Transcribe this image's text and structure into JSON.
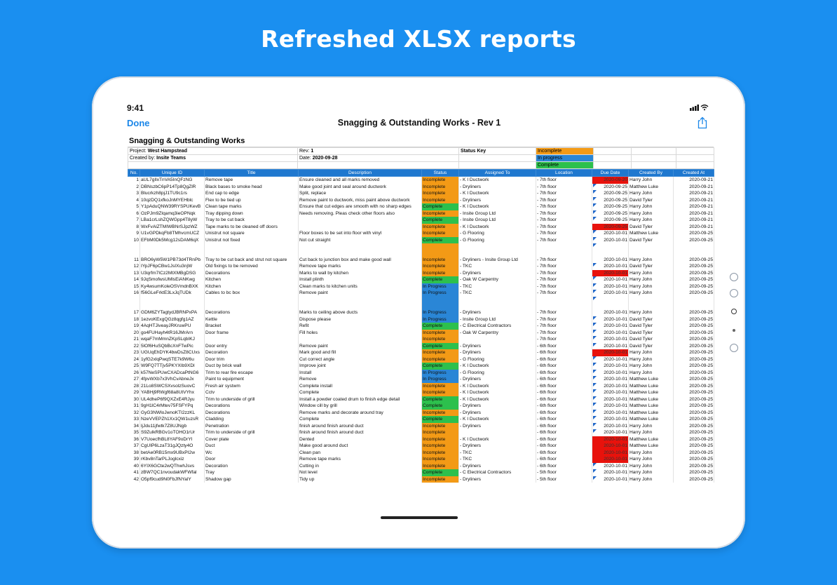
{
  "headline": "Refreshed XLSX reports",
  "status": {
    "time": "9:41"
  },
  "nav": {
    "done": "Done",
    "title": "Snagging & Outstanding Works - Rev 1"
  },
  "sheet": {
    "title": "Snagging & Outstanding Works",
    "project_label": "Project:",
    "project": "West Hampstead",
    "created_label": "Created by:",
    "created": "Insite Teams",
    "rev_label": "Rev:",
    "rev": "1",
    "date_label": "Date:",
    "date": "2020-09-28",
    "status_key_label": "Status Key",
    "key": {
      "incomplete": "Incomplete",
      "progress": "In progress",
      "complete": "Complete"
    },
    "headers": [
      "No.",
      "Unique ID",
      "Title",
      "Description",
      "Status",
      "Assigned To",
      "Location",
      "Due Date",
      "Created By",
      "Created At"
    ],
    "rows": [
      [
        "1",
        "aUL7gIlxTnVA5InQFzNG",
        "Remove tape",
        "Ensure cleaned and all marks removed",
        "Incomplete",
        "- K I Ductwork",
        "- 7th floor",
        "2020-09-20",
        "Harry John",
        "2020-09-21"
      ],
      [
        "2",
        "DBNszbC6pP14Tp8QgZlR",
        "Black bases to smoke head",
        "Make good joint and seal around ductwork",
        "Incomplete",
        "- Dryliners",
        "- 7th floor",
        "2020-09-25",
        "Matthew Luke",
        "2020-09-21"
      ],
      [
        "3",
        "Blucrkzh8pjJ1TU9c1rs",
        "End cap to edge",
        "Split,  replace",
        "Incomplete",
        "- K I Ductwork",
        "- 7th floor",
        "2020-09-25",
        "Harry John",
        "2020-09-21"
      ],
      [
        "4",
        "10qzDQ1xfkoJnMYEHblc",
        "Flex to be tied up",
        "Remove paint to ductwork, miss paint above ductwork",
        "Incomplete",
        "- Dryliners",
        "- 7th floor",
        "2020-09-25",
        "David Tyler",
        "2020-09-21"
      ],
      [
        "5",
        "Y1pAduQNW39RYSPUKevB",
        "Clean tape marks",
        "Ensure that cut edges are smooth with no sharp edges",
        "Complete",
        "- K I Ductwork",
        "- 7th floor",
        "2020-09-25",
        "Harry John",
        "2020-09-21"
      ],
      [
        "6",
        "OzPJm9ZIqamq3ieOPNqk",
        "Tray dipping down",
        "Needs removing.  Pleas check other floors also",
        "Incomplete",
        "- Insite Group Ltd",
        "- 7th floor",
        "2020-09-25",
        "Harry John",
        "2020-09-21"
      ],
      [
        "7",
        "LBa1crLshZQWGpp4T8yW",
        "Tray to be cut back",
        "",
        "Complete",
        "- Insite Group Ltd",
        "- 7th floor",
        "2020-09-25",
        "Harry John",
        "2020-09-21"
      ],
      [
        "8",
        "WxFvAlZTMIWBNrSJpzWZ",
        "Tape marks to be cleaned off doors",
        "",
        "Incomplete",
        "- K I Ductwork",
        "- 7th floor",
        "2020-09-25",
        "David Tyler",
        "2020-09-21"
      ],
      [
        "9",
        "U1vGPDkqFb8TMhvcmUCZ",
        "Unistrut not square",
        "Floor boxes to be set into floor with vinyl",
        "Incomplete",
        "- G Flooring",
        "- 7th floor",
        "2020-10-01",
        "Matthew Luke",
        "2020-09-25"
      ],
      [
        "10",
        "EFbM0Dk5Mcg12sDAM6qX",
        "Unistrut not fixed",
        "Not cut straight",
        "Complete",
        "- G Flooring",
        "- 7th floor",
        "2020-10-01",
        "David Tyler",
        "2020-09-25"
      ],
      [
        "11",
        "BRO6yW5W1PB73d4TRnPb",
        "Tray to be cut back and strut not square",
        "Cut back to junction box and make good wall",
        "Incomplete",
        "- Dryliners\n- Insite Group Ltd",
        "- 7th floor",
        "2020-10-01",
        "Harry John",
        "2020-09-25"
      ],
      [
        "12",
        "IYpJF6pCBw1JsIXu3njW",
        "Old fixings to be removed",
        "Remove tape marks",
        "Incomplete",
        "- TKC",
        "- 7th floor",
        "2020-10-01",
        "David Tyler",
        "2020-09-25"
      ],
      [
        "13",
        "U3qrfm7ICz2MtXMBgDSG",
        "Decorations",
        "Marks to wall by kitchen",
        "Incomplete",
        "- Dryliners",
        "- 7th floor",
        "2020-10-01",
        "Harry John",
        "2020-09-25"
      ],
      [
        "14",
        "9JqSmofwsUMlsEiANKwg",
        "Kitchen",
        "Install plinth",
        "Complete",
        "- Oak W Carpentry",
        "- 7th floor",
        "2020-10-01",
        "Harry John",
        "2020-09-25"
      ],
      [
        "15",
        "Ky4wsumKoleOSVmdnBXK",
        "Kitchen",
        "Clean marks to kitchen units",
        "In Progress",
        "- TKC",
        "- 7th floor",
        "2020-10-01",
        "Harry John",
        "2020-09-25"
      ],
      [
        "16",
        "f56GLeFrktE3LxJqTUDk",
        "Cables to bc box",
        "Remove paint",
        "In Progress",
        "- TKC",
        "- 7th floor",
        "2020-10-01",
        "Harry John",
        "2020-09-25"
      ],
      [
        "17",
        "GDM6ZYTagtydJBRNPxPA",
        "Decorations",
        "Marks to ceiling above ducts",
        "In Progress",
        "- Dryliners",
        "- 7th floor",
        "2020-10-01",
        "Harry John",
        "2020-09-25"
      ],
      [
        "18",
        "1ezvoKExgQGz8qgfg1AZ",
        "Kettle",
        "Dispose please",
        "In Progress",
        "- Insite Group Ltd",
        "- 7th floor",
        "2020-10-01",
        "David Tyler",
        "2020-09-25"
      ],
      [
        "19",
        "4AqHTJiveayJRKruwPU",
        "Bracket",
        "Refit",
        "Complete",
        "- C Electrical Contractors",
        "- 7th floor",
        "2020-10-01",
        "David Tyler",
        "2020-09-25"
      ],
      [
        "20",
        "go4FUHayh4tR16JMrArn",
        "Door frame",
        "Fill holes",
        "Incomplete",
        "- Oak W Carpentry",
        "- 7th floor",
        "2020-10-01",
        "David Tyler",
        "2020-09-25"
      ],
      [
        "21",
        "wqaF7mMmnZKpSLqbIKJ",
        "",
        "",
        "Incomplete",
        "",
        "- 7th floor",
        "2020-10-01",
        "David Tyler",
        "2020-09-25"
      ],
      [
        "22",
        "5lOf6HuSQbBcXnFTwPic",
        "Door entry",
        "Remove paint",
        "Complete",
        "- Dryliners",
        "- 6th floor",
        "2020-10-01",
        "David Tyler",
        "2020-09-25"
      ],
      [
        "23",
        "UGUqEhDYK4bwDsZ8CUxs",
        "Decoration",
        "Mark good and fill",
        "Incomplete",
        "- Dryliners",
        "- 6th floor",
        "2020-10-01",
        "Harry John",
        "2020-09-25"
      ],
      [
        "24",
        "1yfG2xlqPwqSTE7k9W6u",
        "Door trim",
        "Cut correct angle",
        "Incomplete",
        "- G Flooring",
        "- 6th floor",
        "2020-10-01",
        "Harry John",
        "2020-09-25"
      ],
      [
        "25",
        "W9FQ7TTjv5PKYXIb9XDl",
        "Duct by brick wall",
        "Improve joint",
        "Complete",
        "- K I Ductwork",
        "- 6th floor",
        "2020-10-01",
        "Harry John",
        "2020-09-25"
      ],
      [
        "26",
        "k57NeSPUwCXADcaPtNG6",
        "Trim to rear fire escape",
        "Install",
        "In Progress",
        "- G Flooring",
        "- 6th floor",
        "2020-10-01",
        "Harry John",
        "2020-09-25"
      ],
      [
        "27",
        "4fpvWXb7x3VhCvAbneJx",
        "Paint to equipment",
        "Remove",
        "In Progress",
        "- Dryliners",
        "- 6th floor",
        "2020-10-01",
        "Matthew Luke",
        "2020-09-25"
      ],
      [
        "28",
        "21Lo8SWCSXvsolzSuovC",
        "Fresh air systwm",
        "Complete install",
        "Incomplete",
        "- K I Ductwork",
        "- 6th floor",
        "2020-10-01",
        "Matthew Luke",
        "2020-09-25"
      ],
      [
        "29",
        "YABHj9RWgf68a8UtVYhx",
        "Cctv",
        "Complete",
        "Incomplete",
        "- K I Ductwork",
        "- 6th floor",
        "2020-10-01",
        "Matthew Luke",
        "2020-09-25"
      ],
      [
        "30",
        "UL4dheP6f9QXZxE4RJyu",
        "Trim to underside of grill",
        "Install a powder coated drum to finish edge detail",
        "Complete",
        "- K I Ductwork",
        "- 6th floor",
        "2020-10-01",
        "Matthew Luke",
        "2020-09-25"
      ],
      [
        "31",
        "9gH1lC4rMtev75FSFYPq",
        "Decorations",
        "Window cill by grill",
        "Complete",
        "- Dryliners",
        "- 6th floor",
        "2020-10-01",
        "Matthew Luke",
        "2020-09-25"
      ],
      [
        "32",
        "GyG3NWloJwnoKTI2zzKL",
        "Decorations",
        "Remove marks and decorate around tray",
        "Incomplete",
        "- Dryliners",
        "- 6th floor",
        "2020-10-01",
        "Matthew Luke",
        "2020-09-25"
      ],
      [
        "33",
        "NzeVVEPZh1Xx1QW1uzsR",
        "Cladding",
        "Complete",
        "Complete",
        "- K I Ductwork",
        "- 6th floor",
        "2020-10-01",
        "Matthew Luke",
        "2020-09-25"
      ],
      [
        "34",
        "ljJdu11jfwtk7Z8UJNgb",
        "Penetration",
        "finish around finish around duct",
        "Incomplete",
        "- Dryliners",
        "- 6th floor",
        "2020-10-01",
        "Harry John",
        "2020-09-25"
      ],
      [
        "35",
        "S9ZulkRBGv1oTOHO1rUr",
        "Trim to underside of grill",
        "finish around finish around duct",
        "Incomplete",
        "",
        "- 6th floor",
        "2020-10-01",
        "Harry John",
        "2020-09-25"
      ],
      [
        "36",
        "V7UoecfhBL8YAF9oDrYI",
        "Cover plate",
        "Dented",
        "Incomplete",
        "- K I Ductwork",
        "- 6th floor",
        "2020-10-01",
        "Matthew Luke",
        "2020-09-25"
      ],
      [
        "37",
        "CgUIP6LzaT31gJQzty4O",
        "Duct",
        "Make good around duct",
        "Incomplete",
        "- Dryliners",
        "- 6th floor",
        "2020-10-01",
        "Matthew Luke",
        "2020-09-25"
      ],
      [
        "38",
        "betAe0RB15mx9UBxPI2w",
        "Wc",
        "Clean pan",
        "Incomplete",
        "- TKC",
        "- 6th floor",
        "2020-10-01",
        "Harry John",
        "2020-09-25"
      ],
      [
        "39",
        "rKbv8nTarPLJoglcxiz",
        "Door",
        "Remove tape marks",
        "Incomplete",
        "- TKC",
        "- 6th floor",
        "2020-10-01",
        "Harry John",
        "2020-09-25"
      ],
      [
        "40",
        "6YIX6GCte2wQThwhJsvs",
        "Decoration",
        "Cutting in",
        "Incomplete",
        "- Dryliners",
        "- 6th floor",
        "2020-10-01",
        "Harry John",
        "2020-09-25"
      ],
      [
        "41",
        "zBW7QC1nvoudakWFWfal",
        "Tray",
        "Not level",
        "Complete",
        "- C Electrical Contractors",
        "- 5th floor",
        "2020-10-01",
        "Harry John",
        "2020-09-25"
      ],
      [
        "42",
        "O5pf9cud9N0FbJfNYalY",
        "Shadow gap",
        "Tidy up",
        "Incomplete",
        "- Dryliners",
        "- 5th floor",
        "2020-10-01",
        "Harry John",
        "2020-09-25"
      ]
    ],
    "overdue_rows": [
      1,
      8,
      13,
      23,
      36,
      37,
      38,
      39
    ],
    "tall_rows": [
      11,
      17
    ],
    "tall_desc_rows": [
      17
    ]
  },
  "colors": {
    "incomplete": "#f39a16",
    "in_progress": "#2a86d6",
    "complete": "#2dc04d",
    "overdue": "#e8120c",
    "header": "#1f78cf"
  }
}
